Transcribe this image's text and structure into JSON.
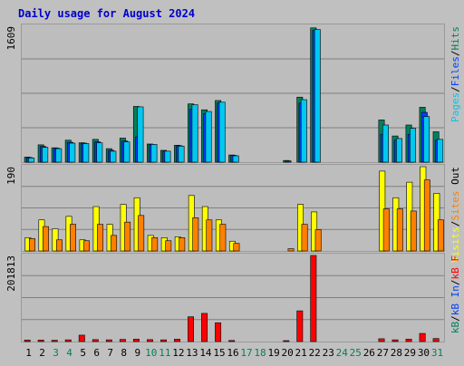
{
  "title": "Daily usage for August 2024",
  "colors": {
    "background": "#c0c0c0",
    "plot_bg": "#bdbdbd",
    "gridline": "#808080",
    "title": "#0000cc",
    "hits": "#00805c",
    "files": "#0040ff",
    "pages": "#00c8f0",
    "visits": "#ffff00",
    "sites": "#ff8000",
    "kb_out": "#00805c",
    "kb_in": "#0040ff",
    "kb_f": "#ff0000",
    "weekday": "#000000",
    "weekend": "#00805c"
  },
  "chart_data": [
    {
      "type": "bar",
      "panel": "hits-files-pages",
      "ymax_label": "1609",
      "ylim": [
        0,
        1609
      ],
      "legend": [
        {
          "text": "Pages",
          "color": "#00c8f0"
        },
        {
          "text": "/",
          "color": "#000000"
        },
        {
          "text": "Files",
          "color": "#0040ff"
        },
        {
          "text": "/",
          "color": "#000000"
        },
        {
          "text": "Hits",
          "color": "#00805c"
        }
      ],
      "categories": [
        "1",
        "2",
        "3",
        "4",
        "5",
        "6",
        "7",
        "8",
        "9",
        "10",
        "11",
        "12",
        "13",
        "14",
        "15",
        "16",
        "17",
        "18",
        "19",
        "20",
        "21",
        "22",
        "23",
        "24",
        "25",
        "26",
        "27",
        "28",
        "29",
        "30",
        "31"
      ],
      "series": [
        {
          "name": "Hits",
          "color": "#00805c",
          "values": [
            60,
            205,
            170,
            260,
            230,
            270,
            160,
            285,
            660,
            215,
            140,
            200,
            690,
            620,
            730,
            85,
            0,
            0,
            0,
            20,
            770,
            1590,
            0,
            0,
            0,
            0,
            500,
            310,
            440,
            650,
            360
          ]
        },
        {
          "name": "Files",
          "color": "#0040ff",
          "values": [
            55,
            185,
            165,
            235,
            225,
            240,
            140,
            250,
            300,
            210,
            130,
            195,
            630,
            575,
            700,
            80,
            0,
            0,
            0,
            15,
            700,
            1560,
            0,
            0,
            0,
            0,
            330,
            260,
            330,
            590,
            260
          ]
        },
        {
          "name": "Pages",
          "color": "#00c8f0",
          "values": [
            50,
            175,
            160,
            225,
            220,
            230,
            130,
            240,
            655,
            210,
            130,
            190,
            680,
            600,
            710,
            75,
            0,
            0,
            0,
            0,
            740,
            1570,
            0,
            0,
            0,
            0,
            440,
            280,
            400,
            540,
            270
          ]
        }
      ]
    },
    {
      "type": "bar",
      "panel": "visits-sites",
      "ymax_label": "190",
      "ylim": [
        0,
        190
      ],
      "legend": [
        {
          "text": "Visits",
          "color": "#ffff00"
        },
        {
          "text": "/",
          "color": "#000000"
        },
        {
          "text": "Sites",
          "color": "#ff8000"
        },
        {
          "text": "Out",
          "color": "#000000"
        }
      ],
      "categories": [
        "1",
        "2",
        "3",
        "4",
        "5",
        "6",
        "7",
        "8",
        "9",
        "10",
        "11",
        "12",
        "13",
        "14",
        "15",
        "16",
        "17",
        "18",
        "19",
        "20",
        "21",
        "22",
        "23",
        "24",
        "25",
        "26",
        "27",
        "28",
        "29",
        "30",
        "31"
      ],
      "series": [
        {
          "name": "Visits",
          "color": "#ffff00",
          "values": [
            30,
            70,
            50,
            78,
            25,
            100,
            60,
            105,
            120,
            35,
            30,
            32,
            125,
            100,
            70,
            22,
            0,
            0,
            0,
            0,
            105,
            88,
            0,
            0,
            0,
            0,
            180,
            120,
            155,
            190,
            130
          ]
        },
        {
          "name": "Sites",
          "color": "#ff8000",
          "values": [
            28,
            55,
            25,
            60,
            23,
            60,
            35,
            65,
            80,
            30,
            23,
            30,
            75,
            70,
            60,
            17,
            0,
            0,
            0,
            5,
            60,
            48,
            0,
            0,
            0,
            0,
            95,
            95,
            90,
            160,
            70
          ]
        }
      ]
    },
    {
      "type": "bar",
      "panel": "kbytes",
      "ymax_label": "201813",
      "ylim": [
        0,
        201813
      ],
      "legend": [
        {
          "text": "kB",
          "color": "#00805c"
        },
        {
          "text": "/",
          "color": "#000000"
        },
        {
          "text": "kB In",
          "color": "#0040ff"
        },
        {
          "text": "/",
          "color": "#000000"
        },
        {
          "text": "kB F",
          "color": "#ff0000"
        }
      ],
      "categories": [
        "1",
        "2",
        "3",
        "4",
        "5",
        "6",
        "7",
        "8",
        "9",
        "10",
        "11",
        "12",
        "13",
        "14",
        "15",
        "16",
        "17",
        "18",
        "19",
        "20",
        "21",
        "22",
        "23",
        "24",
        "25",
        "26",
        "27",
        "28",
        "29",
        "30",
        "31"
      ],
      "series": [
        {
          "name": "kB F",
          "color": "#ff0000",
          "values": [
            3500,
            3500,
            3000,
            4000,
            15000,
            4500,
            4000,
            5000,
            5500,
            4500,
            4000,
            5500,
            58000,
            66000,
            44000,
            2500,
            0,
            0,
            0,
            2000,
            72000,
            201813,
            0,
            0,
            0,
            0,
            6500,
            4000,
            5500,
            19000,
            7000
          ]
        }
      ]
    }
  ],
  "x_label_colors_weekend": [
    "3",
    "4",
    "10",
    "11",
    "17",
    "18",
    "24",
    "25",
    "31"
  ]
}
